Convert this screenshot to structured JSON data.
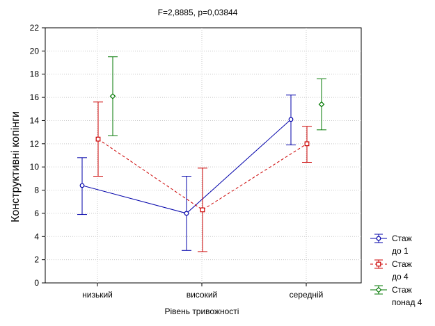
{
  "chart_data": {
    "type": "line",
    "title": "F=2,8885, p=0,03844",
    "xlabel": "Рівень тривожності",
    "ylabel": "Конструктивні копінги",
    "categories": [
      "низький",
      "високий",
      "середній"
    ],
    "ylim": [
      0,
      22
    ],
    "yticks": [
      "0",
      "2",
      "4",
      "6",
      "8",
      "10",
      "12",
      "14",
      "16",
      "18",
      "20",
      "22"
    ],
    "grid": true,
    "legend_position": "bottom-right",
    "series": [
      {
        "name_lines": [
          "Стаж",
          "до 1"
        ],
        "color": "#0000aa",
        "line": "solid",
        "marker": "circle",
        "mean": [
          8.4,
          6.0,
          14.1
        ],
        "lower": [
          5.9,
          2.8,
          11.9
        ],
        "upper": [
          10.8,
          9.2,
          16.2
        ]
      },
      {
        "name_lines": [
          "Стаж",
          "до 4"
        ],
        "color": "#cc0000",
        "line": "dashed",
        "marker": "square",
        "mean": [
          12.4,
          6.3,
          12.0
        ],
        "lower": [
          9.2,
          2.7,
          10.4
        ],
        "upper": [
          15.6,
          9.9,
          13.5
        ]
      },
      {
        "name_lines": [
          "Стаж",
          "понад 4"
        ],
        "color": "#007700",
        "line": "none",
        "marker": "diamond",
        "mean": [
          16.1,
          null,
          15.4
        ],
        "lower": [
          12.7,
          null,
          13.2
        ],
        "upper": [
          19.5,
          null,
          17.6
        ]
      }
    ]
  }
}
